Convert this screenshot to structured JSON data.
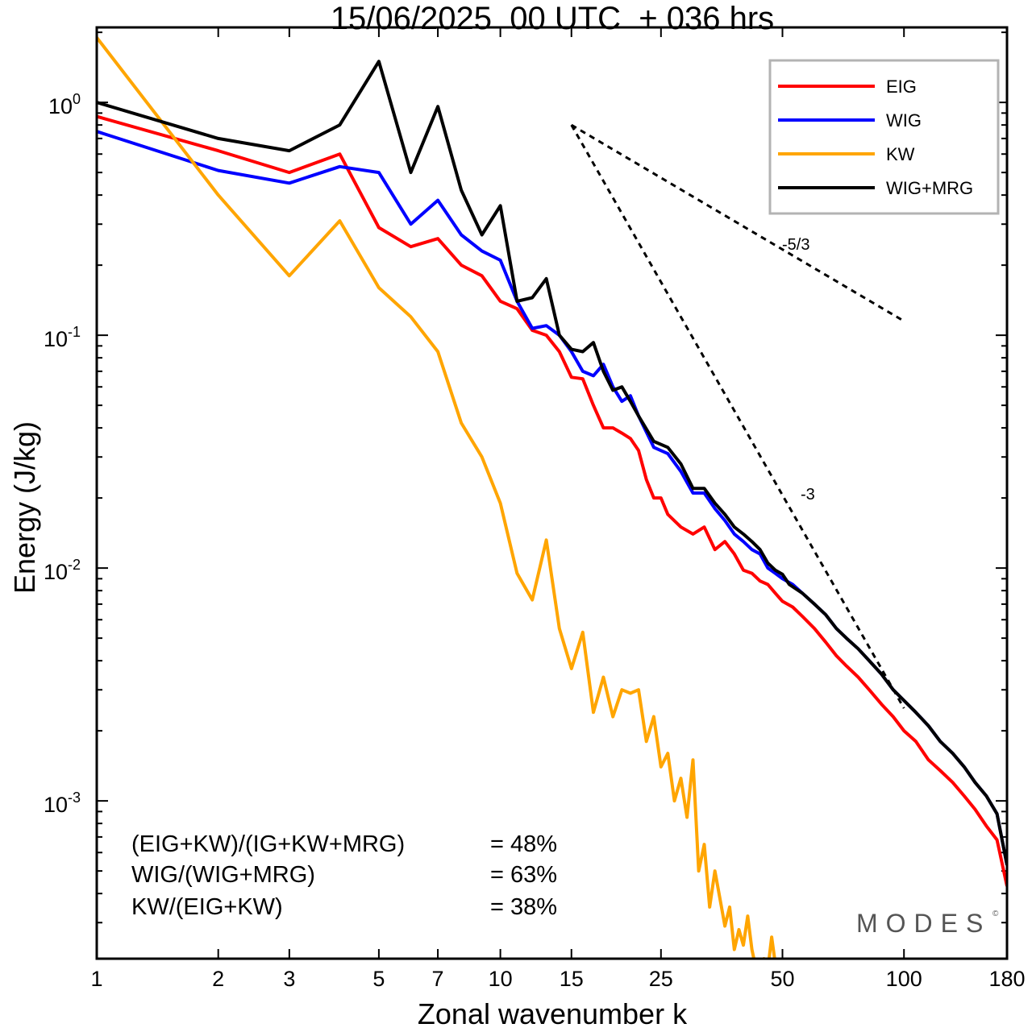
{
  "chart_data": {
    "type": "line",
    "title": "15/06/2025  00 UTC  + 036 hrs",
    "xlabel": "Zonal wavenumber k",
    "ylabel": "Energy (J/kg)",
    "x_scale": "log",
    "y_scale": "log",
    "xlim": [
      1,
      180
    ],
    "ylim": [
      0.00021,
      2.1
    ],
    "x_tick_labels": [
      "1",
      "2",
      "3",
      "5",
      "7",
      "10",
      "15",
      "25",
      "50",
      "100",
      "180"
    ],
    "x_tick_values": [
      1,
      2,
      3,
      5,
      7,
      10,
      15,
      25,
      50,
      100,
      180
    ],
    "y_tick_values": [
      0.001,
      0.01,
      0.1,
      1
    ],
    "y_tick_labels": [
      {
        "base": "10",
        "exp": "-3"
      },
      {
        "base": "10",
        "exp": "-2"
      },
      {
        "base": "10",
        "exp": "-1"
      },
      {
        "base": "10",
        "exp": "0"
      }
    ],
    "legend_position": "top-right",
    "series": [
      {
        "name": "EIG",
        "color": "#ff0000",
        "points": [
          [
            1,
            0.87
          ],
          [
            2,
            0.62
          ],
          [
            3,
            0.5
          ],
          [
            4,
            0.6
          ],
          [
            5,
            0.29
          ],
          [
            6,
            0.24
          ],
          [
            7,
            0.26
          ],
          [
            8,
            0.2
          ],
          [
            9,
            0.18
          ],
          [
            10,
            0.14
          ],
          [
            11,
            0.13
          ],
          [
            12,
            0.105
          ],
          [
            13,
            0.1
          ],
          [
            14,
            0.085
          ],
          [
            15,
            0.066
          ],
          [
            16,
            0.065
          ],
          [
            17,
            0.05
          ],
          [
            18,
            0.04
          ],
          [
            19,
            0.04
          ],
          [
            20,
            0.038
          ],
          [
            21,
            0.036
          ],
          [
            22,
            0.032
          ],
          [
            23,
            0.024
          ],
          [
            24,
            0.02
          ],
          [
            25,
            0.02
          ],
          [
            26,
            0.017
          ],
          [
            28,
            0.015
          ],
          [
            30,
            0.014
          ],
          [
            32,
            0.015
          ],
          [
            34,
            0.012
          ],
          [
            36,
            0.013
          ],
          [
            38,
            0.0115
          ],
          [
            40,
            0.0098
          ],
          [
            42,
            0.0095
          ],
          [
            44,
            0.0088
          ],
          [
            46,
            0.0085
          ],
          [
            48,
            0.0078
          ],
          [
            50,
            0.0072
          ],
          [
            53,
            0.0068
          ],
          [
            56,
            0.0062
          ],
          [
            60,
            0.0055
          ],
          [
            64,
            0.0048
          ],
          [
            68,
            0.0042
          ],
          [
            72,
            0.0038
          ],
          [
            77,
            0.0034
          ],
          [
            82,
            0.003
          ],
          [
            88,
            0.0026
          ],
          [
            94,
            0.0023
          ],
          [
            100,
            0.002
          ],
          [
            107,
            0.0018
          ],
          [
            115,
            0.0015
          ],
          [
            123,
            0.00135
          ],
          [
            132,
            0.0012
          ],
          [
            141,
            0.00105
          ],
          [
            150,
            0.00092
          ],
          [
            160,
            0.00078
          ],
          [
            170,
            0.00068
          ],
          [
            180,
            0.00043
          ]
        ]
      },
      {
        "name": "WIG",
        "color": "#0000ff",
        "points": [
          [
            1,
            0.75
          ],
          [
            2,
            0.51
          ],
          [
            3,
            0.45
          ],
          [
            4,
            0.53
          ],
          [
            5,
            0.5
          ],
          [
            6,
            0.3
          ],
          [
            7,
            0.38
          ],
          [
            8,
            0.27
          ],
          [
            9,
            0.23
          ],
          [
            10,
            0.21
          ],
          [
            11,
            0.14
          ],
          [
            12,
            0.107
          ],
          [
            13,
            0.11
          ],
          [
            14,
            0.1
          ],
          [
            15,
            0.085
          ],
          [
            16,
            0.07
          ],
          [
            17,
            0.067
          ],
          [
            18,
            0.075
          ],
          [
            19,
            0.06
          ],
          [
            20,
            0.052
          ],
          [
            21,
            0.055
          ],
          [
            22,
            0.045
          ],
          [
            24,
            0.033
          ],
          [
            26,
            0.031
          ],
          [
            28,
            0.026
          ],
          [
            30,
            0.021
          ],
          [
            32,
            0.021
          ],
          [
            34,
            0.018
          ],
          [
            36,
            0.016
          ],
          [
            38,
            0.014
          ],
          [
            40,
            0.013
          ],
          [
            42,
            0.012
          ],
          [
            44,
            0.0115
          ],
          [
            46,
            0.01
          ],
          [
            48,
            0.0095
          ],
          [
            50,
            0.009
          ],
          [
            53,
            0.0085
          ],
          [
            56,
            0.0078
          ],
          [
            60,
            0.007
          ],
          [
            64,
            0.0063
          ],
          [
            68,
            0.0055
          ],
          [
            72,
            0.005
          ],
          [
            77,
            0.0045
          ],
          [
            82,
            0.004
          ],
          [
            88,
            0.0035
          ],
          [
            94,
            0.003
          ],
          [
            100,
            0.0027
          ],
          [
            107,
            0.0024
          ],
          [
            115,
            0.0021
          ],
          [
            123,
            0.0018
          ],
          [
            132,
            0.0016
          ],
          [
            141,
            0.0014
          ],
          [
            150,
            0.0012
          ],
          [
            160,
            0.00105
          ],
          [
            170,
            0.00088
          ],
          [
            180,
            0.00053
          ]
        ]
      },
      {
        "name": "KW",
        "color": "#ffa500",
        "points": [
          [
            1,
            1.9
          ],
          [
            2,
            0.4
          ],
          [
            3,
            0.18
          ],
          [
            4,
            0.31
          ],
          [
            5,
            0.16
          ],
          [
            6,
            0.12
          ],
          [
            7,
            0.085
          ],
          [
            8,
            0.042
          ],
          [
            9,
            0.03
          ],
          [
            10,
            0.019
          ],
          [
            11,
            0.0095
          ],
          [
            12,
            0.0073
          ],
          [
            13,
            0.0132
          ],
          [
            14,
            0.0055
          ],
          [
            15,
            0.0037
          ],
          [
            16,
            0.0053
          ],
          [
            17,
            0.0024
          ],
          [
            18,
            0.0034
          ],
          [
            19,
            0.0023
          ],
          [
            20,
            0.003
          ],
          [
            21,
            0.0029
          ],
          [
            22,
            0.003
          ],
          [
            23,
            0.0018
          ],
          [
            24,
            0.0023
          ],
          [
            25,
            0.0014
          ],
          [
            26,
            0.0016
          ],
          [
            27,
            0.001
          ],
          [
            28,
            0.00125
          ],
          [
            29,
            0.00085
          ],
          [
            30,
            0.0015
          ],
          [
            31,
            0.0005
          ],
          [
            32,
            0.00065
          ],
          [
            33,
            0.00035
          ],
          [
            34,
            0.0005
          ],
          [
            35,
            0.00038
          ],
          [
            36,
            0.00029
          ],
          [
            37,
            0.00035
          ],
          [
            38,
            0.00023
          ],
          [
            39,
            0.00028
          ],
          [
            40,
            0.00024
          ],
          [
            41,
            0.00032
          ],
          [
            42,
            0.00023
          ],
          [
            43,
            0.00019
          ],
          [
            44,
            0.00016
          ],
          [
            45,
            0.00021
          ],
          [
            46,
            0.00019
          ],
          [
            47,
            0.00026
          ],
          [
            48,
            0.0002
          ]
        ]
      },
      {
        "name": "WIG+MRG",
        "color": "#000000",
        "points": [
          [
            1,
            1.0
          ],
          [
            2,
            0.7
          ],
          [
            3,
            0.62
          ],
          [
            4,
            0.8
          ],
          [
            5,
            1.5
          ],
          [
            6,
            0.5
          ],
          [
            7,
            0.96
          ],
          [
            8,
            0.42
          ],
          [
            9,
            0.27
          ],
          [
            10,
            0.36
          ],
          [
            11,
            0.14
          ],
          [
            12,
            0.145
          ],
          [
            13,
            0.175
          ],
          [
            14,
            0.1
          ],
          [
            15,
            0.087
          ],
          [
            16,
            0.085
          ],
          [
            17,
            0.093
          ],
          [
            18,
            0.07
          ],
          [
            19,
            0.058
          ],
          [
            20,
            0.06
          ],
          [
            21,
            0.052
          ],
          [
            22,
            0.045
          ],
          [
            24,
            0.035
          ],
          [
            26,
            0.033
          ],
          [
            28,
            0.028
          ],
          [
            30,
            0.022
          ],
          [
            32,
            0.022
          ],
          [
            34,
            0.019
          ],
          [
            36,
            0.017
          ],
          [
            38,
            0.015
          ],
          [
            40,
            0.014
          ],
          [
            42,
            0.013
          ],
          [
            44,
            0.012
          ],
          [
            46,
            0.0105
          ],
          [
            48,
            0.0098
          ],
          [
            50,
            0.0094
          ],
          [
            52,
            0.0085
          ],
          [
            56,
            0.0078
          ],
          [
            60,
            0.007
          ],
          [
            64,
            0.0063
          ],
          [
            68,
            0.0055
          ],
          [
            72,
            0.005
          ],
          [
            77,
            0.0045
          ],
          [
            82,
            0.004
          ],
          [
            88,
            0.0035
          ],
          [
            94,
            0.003
          ],
          [
            100,
            0.0027
          ],
          [
            107,
            0.0024
          ],
          [
            115,
            0.0021
          ],
          [
            123,
            0.0018
          ],
          [
            132,
            0.0016
          ],
          [
            141,
            0.0014
          ],
          [
            150,
            0.0012
          ],
          [
            160,
            0.00105
          ],
          [
            170,
            0.00088
          ],
          [
            180,
            0.00053
          ]
        ]
      }
    ],
    "reference_slopes": [
      {
        "label": "-5/3",
        "points": [
          [
            15,
            0.8
          ],
          [
            100,
            0.115
          ]
        ]
      },
      {
        "label": "-3",
        "points": [
          [
            15,
            0.8
          ],
          [
            100,
            0.0025
          ]
        ]
      }
    ]
  },
  "ratios": [
    {
      "label": "(EIG+KW)/(IG+KW+MRG)",
      "value": "= 48%"
    },
    {
      "label": "WIG/(WIG+MRG)",
      "value": "= 63%"
    },
    {
      "label": "KW/(EIG+KW)",
      "value": "= 38%"
    }
  ],
  "brand": {
    "text": "MODES",
    "mark": "©"
  }
}
